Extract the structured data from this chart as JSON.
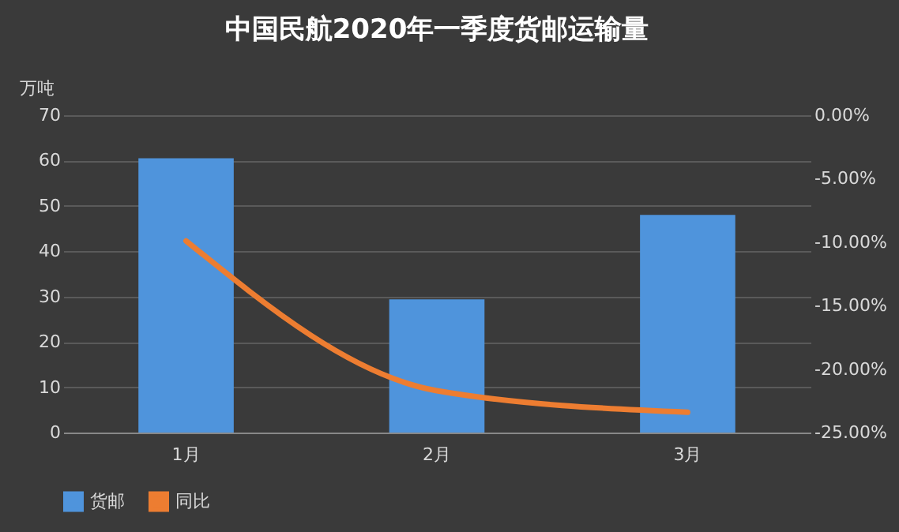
{
  "chart_data": {
    "type": "bar",
    "title": "中国民航2020年一季度货邮运输量",
    "ylabel": "万吨",
    "categories": [
      "1月",
      "2月",
      "3月"
    ],
    "series": [
      {
        "name": "货邮",
        "color": "#4f94dc",
        "values": [
          60.5,
          29.4,
          48.0
        ]
      },
      {
        "name": "同比",
        "type": "line",
        "axis": "y2",
        "color": "#ed7d31",
        "values": [
          -9.9,
          -21.7,
          -23.4
        ]
      }
    ],
    "ylim": [
      0,
      70
    ],
    "yticks": [
      0,
      10,
      20,
      30,
      40,
      50,
      60,
      70
    ],
    "y2lim": [
      -25,
      0
    ],
    "y2ticks": [
      {
        "value": 0,
        "label": "0.00%"
      },
      {
        "value": -5,
        "label": "-5.00%"
      },
      {
        "value": -10,
        "label": "-10.00%"
      },
      {
        "value": -15,
        "label": "-15.00%"
      },
      {
        "value": -20,
        "label": "-20.00%"
      },
      {
        "value": -25,
        "label": "-25.00%"
      }
    ],
    "grid": "y",
    "legend": "bottom"
  }
}
